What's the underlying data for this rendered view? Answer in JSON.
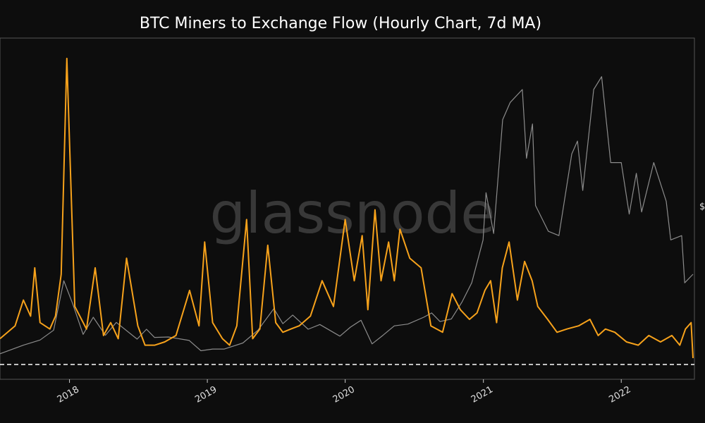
{
  "chart_data": {
    "type": "line",
    "title": "BTC Miners to Exchange Flow (Hourly Chart, 7d MA)",
    "watermark": "glassnode",
    "right_axis_label": "$",
    "x_ticks": [
      "2018",
      "2019",
      "2020",
      "2021",
      "2022"
    ],
    "x_range": [
      "2017-07-01",
      "2022-07-10"
    ],
    "grid": false,
    "colors": {
      "background": "#0d0d0d",
      "flow": "#f7a21b",
      "price": "#8c8c8c",
      "baseline": "#ffffff",
      "frame": "#555555"
    },
    "series": [
      {
        "key": "flow",
        "axis": "left",
        "ylim": [
          0,
          1000
        ],
        "x": [
          "2017-07-01",
          "2017-08-10",
          "2017-09-01",
          "2017-09-20",
          "2017-10-01",
          "2017-10-15",
          "2017-11-10",
          "2017-11-25",
          "2017-12-10",
          "2017-12-25",
          "2018-01-15",
          "2018-02-15",
          "2018-03-10",
          "2018-04-01",
          "2018-04-20",
          "2018-05-10",
          "2018-06-01",
          "2018-07-01",
          "2018-07-20",
          "2018-08-15",
          "2018-09-10",
          "2018-10-10",
          "2018-11-15",
          "2018-12-10",
          "2018-12-25",
          "2019-01-15",
          "2019-02-10",
          "2019-03-01",
          "2019-03-20",
          "2019-04-15",
          "2019-05-01",
          "2019-05-20",
          "2019-06-10",
          "2019-07-01",
          "2019-07-20",
          "2019-08-10",
          "2019-09-01",
          "2019-10-01",
          "2019-11-01",
          "2019-12-01",
          "2020-01-01",
          "2020-01-25",
          "2020-02-15",
          "2020-03-01",
          "2020-03-20",
          "2020-04-05",
          "2020-04-25",
          "2020-05-10",
          "2020-05-25",
          "2020-06-20",
          "2020-07-20",
          "2020-08-15",
          "2020-09-15",
          "2020-10-10",
          "2020-11-01",
          "2020-11-25",
          "2020-12-15",
          "2021-01-05",
          "2021-01-20",
          "2021-02-05",
          "2021-02-20",
          "2021-03-10",
          "2021-04-01",
          "2021-04-20",
          "2021-05-10",
          "2021-05-25",
          "2021-06-20",
          "2021-07-15",
          "2021-08-10",
          "2021-09-10",
          "2021-10-10",
          "2021-11-01",
          "2021-11-20",
          "2021-12-15",
          "2022-01-15",
          "2022-02-15",
          "2022-03-15",
          "2022-04-15",
          "2022-05-15",
          "2022-06-05",
          "2022-06-20",
          "2022-07-05",
          "2022-07-10"
        ],
        "y": [
          80,
          120,
          200,
          150,
          300,
          130,
          110,
          150,
          280,
          950,
          180,
          110,
          300,
          90,
          130,
          80,
          330,
          120,
          60,
          60,
          70,
          90,
          230,
          120,
          380,
          130,
          80,
          60,
          120,
          450,
          80,
          110,
          370,
          130,
          100,
          110,
          120,
          150,
          260,
          180,
          450,
          260,
          400,
          170,
          480,
          260,
          380,
          260,
          420,
          330,
          300,
          120,
          100,
          220,
          170,
          140,
          160,
          230,
          260,
          130,
          300,
          380,
          200,
          320,
          260,
          180,
          140,
          100,
          110,
          120,
          140,
          90,
          110,
          100,
          70,
          60,
          90,
          70,
          90,
          60,
          110,
          130,
          20
        ]
      },
      {
        "key": "price",
        "axis": "right",
        "ylim": [
          0,
          75000
        ],
        "x": [
          "2017-07-01",
          "2017-09-01",
          "2017-10-15",
          "2017-11-20",
          "2017-12-17",
          "2018-01-10",
          "2018-02-06",
          "2018-03-05",
          "2018-04-06",
          "2018-05-05",
          "2018-06-29",
          "2018-07-24",
          "2018-08-14",
          "2018-09-20",
          "2018-11-14",
          "2018-12-15",
          "2019-01-15",
          "2019-02-15",
          "2019-04-05",
          "2019-05-15",
          "2019-06-26",
          "2019-07-20",
          "2019-08-15",
          "2019-09-25",
          "2019-10-26",
          "2019-12-18",
          "2020-01-15",
          "2020-02-12",
          "2020-03-12",
          "2020-04-10",
          "2020-05-10",
          "2020-06-15",
          "2020-07-27",
          "2020-08-17",
          "2020-09-08",
          "2020-10-08",
          "2020-11-05",
          "2020-12-01",
          "2020-12-31",
          "2021-01-08",
          "2021-01-28",
          "2021-02-21",
          "2021-03-13",
          "2021-04-14",
          "2021-04-25",
          "2021-05-11",
          "2021-05-19",
          "2021-06-22",
          "2021-07-20",
          "2021-08-23",
          "2021-09-07",
          "2021-09-21",
          "2021-10-20",
          "2021-11-10",
          "2021-12-04",
          "2022-01-01",
          "2022-01-22",
          "2022-02-10",
          "2022-02-24",
          "2022-03-28",
          "2022-04-30",
          "2022-05-12",
          "2022-06-10",
          "2022-06-18",
          "2022-07-10"
        ],
        "y": [
          2500,
          4500,
          5700,
          8000,
          19500,
          14000,
          7000,
          11000,
          6800,
          9800,
          5900,
          8200,
          6300,
          6400,
          5600,
          3200,
          3600,
          3600,
          5000,
          8000,
          13000,
          9500,
          11500,
          8200,
          9300,
          6600,
          8700,
          10300,
          4800,
          6800,
          9000,
          9400,
          11000,
          12000,
          10000,
          10600,
          14500,
          19000,
          29000,
          40000,
          30500,
          57000,
          61000,
          64000,
          48000,
          56000,
          37000,
          31000,
          30000,
          49000,
          52000,
          40500,
          64000,
          67000,
          47000,
          47000,
          35000,
          44500,
          35500,
          47000,
          38000,
          29000,
          30000,
          19000,
          21000
        ]
      }
    ]
  }
}
